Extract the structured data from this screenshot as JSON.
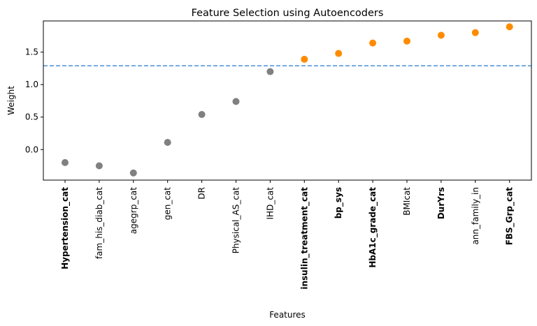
{
  "chart_data": {
    "type": "scatter",
    "title": "Feature Selection using Autoencoders",
    "xlabel": "Features",
    "ylabel": "Weight",
    "ylim": [
      -0.47,
      1.98
    ],
    "yticks": [
      0.0,
      0.5,
      1.0,
      1.5
    ],
    "ytick_labels": [
      "0.0",
      "0.5",
      "1.0",
      "1.5"
    ],
    "threshold": 1.29,
    "grid": false,
    "colors": {
      "below_threshold": "#808080",
      "above_threshold": "#ff8c00",
      "threshold_line": "#4a90d9"
    },
    "points": [
      {
        "feature": "Hypertension_cat",
        "weight": -0.2,
        "selected": false,
        "label_color": "#ff0000",
        "label_bold": true
      },
      {
        "feature": "fam_his_diab_cat",
        "weight": -0.25,
        "selected": false,
        "label_color": "#000000",
        "label_bold": false
      },
      {
        "feature": "agegrp_cat",
        "weight": -0.36,
        "selected": false,
        "label_color": "#000000",
        "label_bold": false
      },
      {
        "feature": "gen_cat",
        "weight": 0.11,
        "selected": false,
        "label_color": "#000000",
        "label_bold": false
      },
      {
        "feature": "DR",
        "weight": 0.54,
        "selected": false,
        "label_color": "#000000",
        "label_bold": false
      },
      {
        "feature": "Physical_AS_cat",
        "weight": 0.74,
        "selected": false,
        "label_color": "#000000",
        "label_bold": false
      },
      {
        "feature": "IHD_cat",
        "weight": 1.2,
        "selected": false,
        "label_color": "#000000",
        "label_bold": false
      },
      {
        "feature": "insulin_treatment_cat",
        "weight": 1.39,
        "selected": true,
        "label_color": "#000000",
        "label_bold": true
      },
      {
        "feature": "bp_sys",
        "weight": 1.48,
        "selected": true,
        "label_color": "#000000",
        "label_bold": true
      },
      {
        "feature": "HbA1c_grade_cat",
        "weight": 1.64,
        "selected": true,
        "label_color": "#000000",
        "label_bold": true
      },
      {
        "feature": "BMIcat",
        "weight": 1.67,
        "selected": true,
        "label_color": "#ff0000",
        "label_bold": false
      },
      {
        "feature": "DurYrs",
        "weight": 1.76,
        "selected": true,
        "label_color": "#000000",
        "label_bold": true
      },
      {
        "feature": "ann_family_in",
        "weight": 1.8,
        "selected": true,
        "label_color": "#ff0000",
        "label_bold": false
      },
      {
        "feature": "FBS_Grp_cat",
        "weight": 1.89,
        "selected": true,
        "label_color": "#000000",
        "label_bold": true
      }
    ]
  }
}
